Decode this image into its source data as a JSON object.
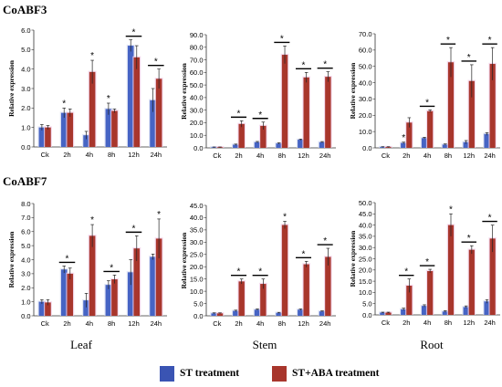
{
  "labels": {
    "gene_top": "CoABF3",
    "gene_bottom": "CoABF7",
    "tissues": [
      "Leaf",
      "Stem",
      "Root"
    ],
    "ylabel": "Relative expression",
    "legend": [
      {
        "label": "ST treatment",
        "color": "#3a54b3"
      },
      {
        "label": "ST+ABA treatment",
        "color": "#a8362c"
      }
    ]
  },
  "colors": {
    "st": "#4664c4",
    "aba": "#a8362c",
    "st_glow": "#d7dcf2",
    "aba_glow": "#f2d0ea"
  },
  "chart_data": [
    {
      "type": "bar",
      "gene": "CoABF3",
      "tissue": "Leaf",
      "categories": [
        "Ck",
        "2h",
        "4h",
        "8h",
        "12h",
        "24h"
      ],
      "series": [
        {
          "name": "ST treatment",
          "values": [
            1.0,
            1.75,
            0.6,
            1.95,
            5.2,
            2.4
          ],
          "errors": [
            0.15,
            0.25,
            0.2,
            0.3,
            0.3,
            0.6
          ]
        },
        {
          "name": "ST+ABA treatment",
          "values": [
            1.0,
            1.75,
            3.85,
            1.85,
            4.6,
            3.5
          ],
          "errors": [
            0.1,
            0.2,
            0.6,
            0.1,
            0.6,
            0.5
          ]
        }
      ],
      "ylabel": "Relative expression",
      "ylim": [
        0,
        6
      ],
      "yticks": [
        0.0,
        1.0,
        2.0,
        3.0,
        4.0,
        5.0,
        6.0
      ],
      "tick_decimals": 1,
      "stars": [
        {
          "index": 1,
          "on": "st"
        },
        {
          "index": 2,
          "on": "aba"
        },
        {
          "index": 3,
          "on": "st"
        },
        {
          "index": 4,
          "on": "pair"
        },
        {
          "index": 5,
          "on": "pair"
        }
      ]
    },
    {
      "type": "bar",
      "gene": "CoABF3",
      "tissue": "Stem",
      "categories": [
        "Ck",
        "2h",
        "4h",
        "8h",
        "12h",
        "24h"
      ],
      "series": [
        {
          "name": "ST treatment",
          "values": [
            0.5,
            2.5,
            4.5,
            3.5,
            6.5,
            4.5
          ],
          "errors": [
            0.2,
            0.5,
            0.6,
            0.5,
            0.5,
            0.5
          ]
        },
        {
          "name": "ST+ABA treatment",
          "values": [
            0.5,
            19.0,
            17.5,
            74.0,
            56.0,
            56.5
          ],
          "errors": [
            0.2,
            2.5,
            3.0,
            7.0,
            4.0,
            4.0
          ]
        }
      ],
      "ylabel": "Relative expression",
      "ylim": [
        0,
        90
      ],
      "yticks": [
        0,
        10,
        20,
        30,
        40,
        50,
        60,
        70,
        80,
        90
      ],
      "tick_decimals": 1,
      "stars": [
        {
          "index": 1,
          "on": "pair"
        },
        {
          "index": 2,
          "on": "pair"
        },
        {
          "index": 3,
          "on": "pair"
        },
        {
          "index": 4,
          "on": "pair"
        },
        {
          "index": 5,
          "on": "pair"
        }
      ]
    },
    {
      "type": "bar",
      "gene": "CoABF3",
      "tissue": "Root",
      "categories": [
        "Ck",
        "2h",
        "4h",
        "8h",
        "12h",
        "24h"
      ],
      "series": [
        {
          "name": "ST treatment",
          "values": [
            0.5,
            3.0,
            6.0,
            2.0,
            3.5,
            8.5
          ],
          "errors": [
            0.2,
            0.5,
            0.5,
            0.4,
            1.0,
            0.8
          ]
        },
        {
          "name": "ST+ABA treatment",
          "values": [
            0.5,
            15.5,
            22.5,
            52.5,
            41.0,
            51.5
          ],
          "errors": [
            0.2,
            3.0,
            0.8,
            9.0,
            10.0,
            10.0
          ]
        }
      ],
      "ylabel": "Relative expression",
      "ylim": [
        0,
        70
      ],
      "yticks": [
        0,
        10,
        20,
        30,
        40,
        50,
        60,
        70
      ],
      "tick_decimals": 1,
      "stars": [
        {
          "index": 1,
          "on": "st"
        },
        {
          "index": 2,
          "on": "pair"
        },
        {
          "index": 3,
          "on": "pair"
        },
        {
          "index": 4,
          "on": "pair"
        },
        {
          "index": 5,
          "on": "pair"
        }
      ]
    },
    {
      "type": "bar",
      "gene": "CoABF7",
      "tissue": "Leaf",
      "categories": [
        "Ck",
        "2h",
        "4h",
        "8h",
        "12h",
        "24h"
      ],
      "series": [
        {
          "name": "ST treatment",
          "values": [
            1.0,
            3.3,
            1.1,
            2.2,
            3.1,
            4.2
          ],
          "errors": [
            0.15,
            0.25,
            0.5,
            0.3,
            0.9,
            0.2
          ]
        },
        {
          "name": "ST+ABA treatment",
          "values": [
            0.95,
            3.0,
            5.7,
            2.6,
            4.8,
            5.5
          ],
          "errors": [
            0.2,
            0.4,
            0.8,
            0.3,
            0.9,
            1.4
          ]
        }
      ],
      "ylabel": "Relative expression",
      "ylim": [
        0,
        8
      ],
      "yticks": [
        0,
        1,
        2,
        3,
        4,
        5,
        6,
        7,
        8
      ],
      "tick_decimals": 1,
      "stars": [
        {
          "index": 1,
          "on": "pair"
        },
        {
          "index": 2,
          "on": "aba"
        },
        {
          "index": 3,
          "on": "pair"
        },
        {
          "index": 4,
          "on": "pair"
        },
        {
          "index": 5,
          "on": "aba"
        }
      ]
    },
    {
      "type": "bar",
      "gene": "CoABF7",
      "tissue": "Stem",
      "categories": [
        "Ck",
        "2h",
        "4h",
        "8h",
        "12h",
        "24h"
      ],
      "series": [
        {
          "name": "ST treatment",
          "values": [
            1.0,
            2.0,
            2.5,
            1.2,
            2.5,
            1.8
          ],
          "errors": [
            0.2,
            0.3,
            0.3,
            0.2,
            0.3,
            0.2
          ]
        },
        {
          "name": "ST+ABA treatment",
          "values": [
            1.0,
            14.0,
            13.0,
            37.0,
            21.0,
            24.0
          ],
          "errors": [
            0.2,
            1.0,
            2.0,
            1.5,
            1.2,
            3.5
          ]
        }
      ],
      "ylabel": "Relative expression",
      "ylim": [
        0,
        45
      ],
      "yticks": [
        0,
        5,
        10,
        15,
        20,
        25,
        30,
        35,
        40,
        45
      ],
      "tick_decimals": 1,
      "stars": [
        {
          "index": 1,
          "on": "pair"
        },
        {
          "index": 2,
          "on": "pair"
        },
        {
          "index": 3,
          "on": "aba"
        },
        {
          "index": 4,
          "on": "pair"
        },
        {
          "index": 5,
          "on": "pair"
        }
      ]
    },
    {
      "type": "bar",
      "gene": "CoABF7",
      "tissue": "Root",
      "categories": [
        "Ck",
        "2h",
        "4h",
        "8h",
        "12h",
        "24h"
      ],
      "series": [
        {
          "name": "ST treatment",
          "values": [
            1.0,
            2.5,
            4.0,
            1.5,
            3.5,
            6.0
          ],
          "errors": [
            0.2,
            0.5,
            0.5,
            0.4,
            0.5,
            0.8
          ]
        },
        {
          "name": "ST+ABA treatment",
          "values": [
            1.0,
            13.0,
            19.5,
            40.0,
            29.0,
            34.0
          ],
          "errors": [
            0.2,
            3.0,
            0.8,
            5.0,
            1.8,
            6.0
          ]
        }
      ],
      "ylabel": "Relative expression",
      "ylim": [
        0,
        50
      ],
      "yticks": [
        0,
        5,
        10,
        15,
        20,
        25,
        30,
        35,
        40,
        45,
        50
      ],
      "tick_decimals": 1,
      "stars": [
        {
          "index": 1,
          "on": "pair"
        },
        {
          "index": 2,
          "on": "pair"
        },
        {
          "index": 3,
          "on": "aba"
        },
        {
          "index": 4,
          "on": "pair"
        },
        {
          "index": 5,
          "on": "pair"
        }
      ]
    }
  ]
}
